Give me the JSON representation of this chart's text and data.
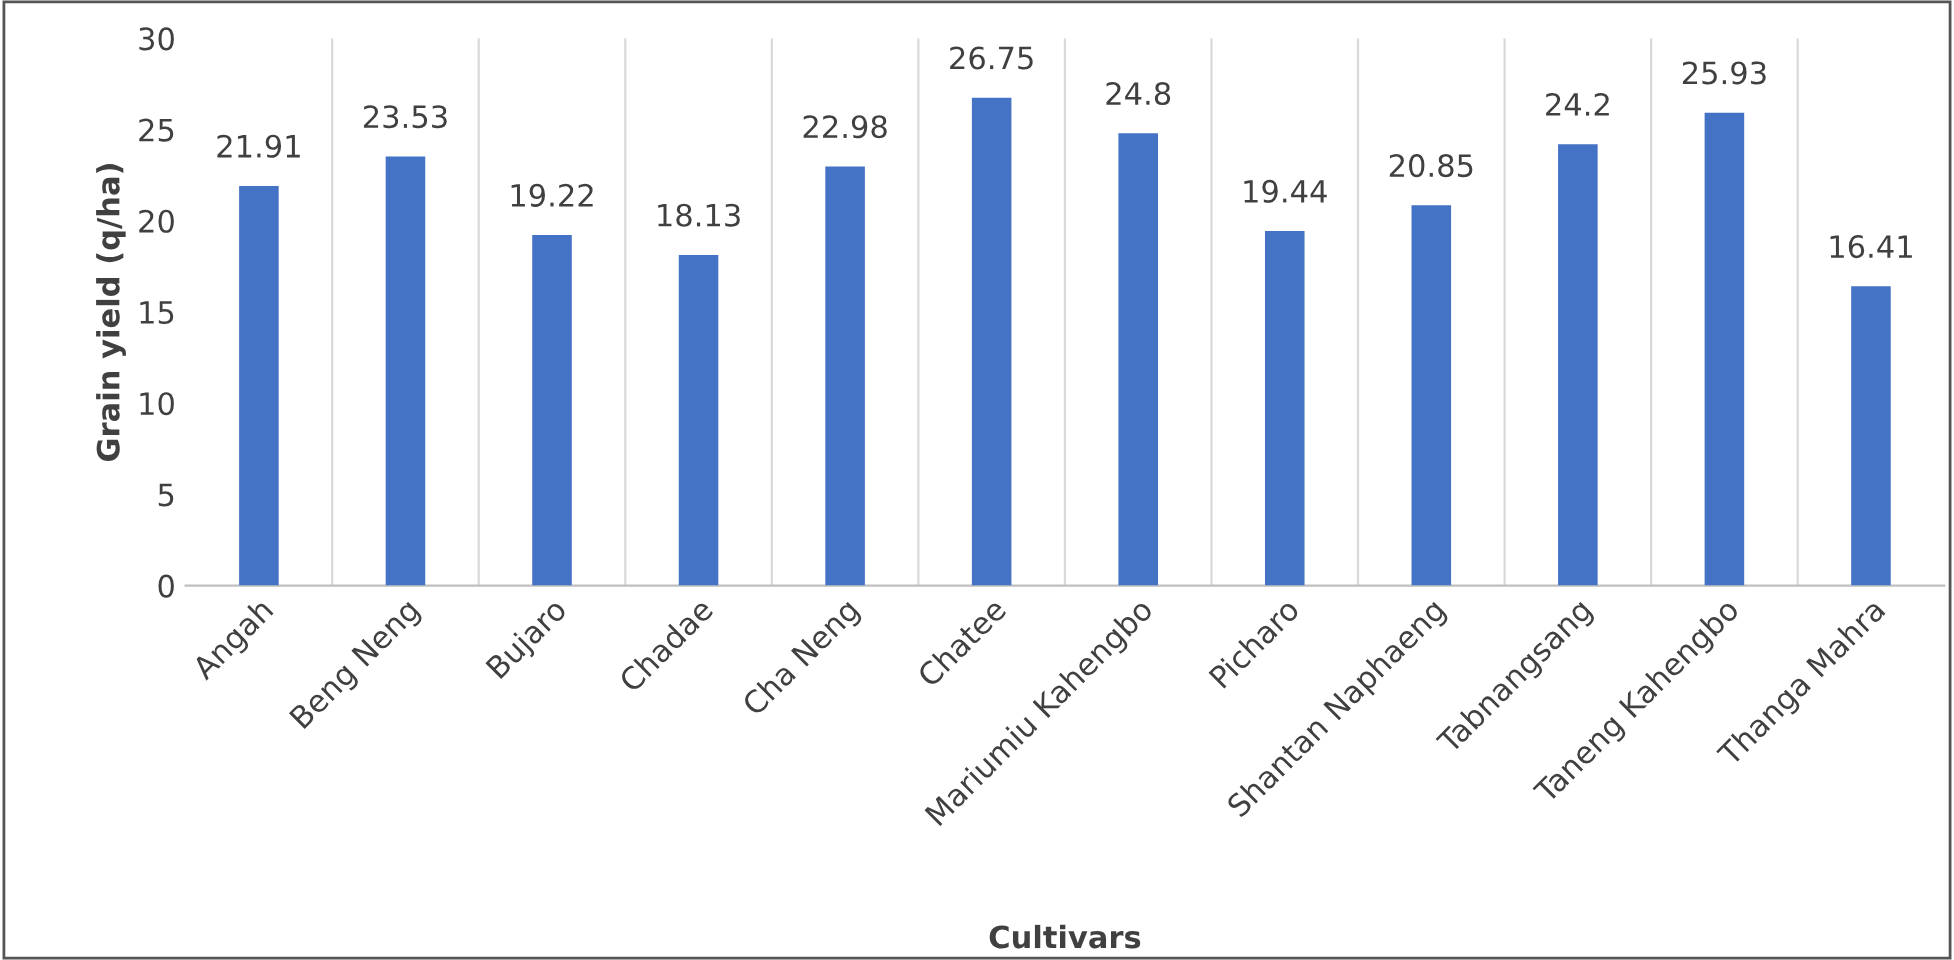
{
  "chart_data": {
    "type": "bar",
    "xlabel": "Cultivars",
    "ylabel": "Grain yield (q/ha)",
    "categories": [
      "Angah",
      "Beng Neng",
      "Bujaro",
      "Chadae",
      "Cha Neng",
      "Chatee",
      "Mariumiu Kahengbo",
      "Picharo",
      "Shantan Naphaeng",
      "Tabnangsang",
      "Taneng Kahengbo",
      "Thanga Mahra"
    ],
    "values": [
      21.91,
      23.53,
      19.22,
      18.13,
      22.98,
      26.75,
      24.8,
      19.44,
      20.85,
      24.2,
      25.93,
      16.41
    ],
    "color": "#4472c4",
    "ylim": [
      0,
      30
    ],
    "yticks": [
      0,
      5,
      10,
      15,
      20,
      25,
      30
    ],
    "data_labels": true,
    "grid": false,
    "legend": false
  }
}
